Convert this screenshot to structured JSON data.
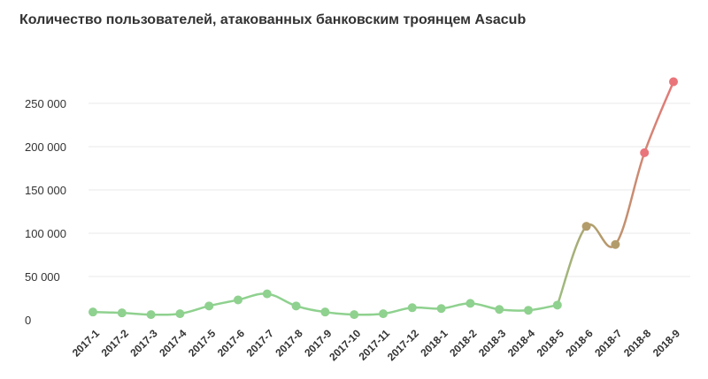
{
  "chart_data": {
    "type": "line",
    "title": "Количество пользователей, атакованных банковским троянцем Asacub",
    "xlabel": "",
    "ylabel": "",
    "categories": [
      "2017-1",
      "2017-2",
      "2017-3",
      "2017-4",
      "2017-5",
      "2017-6",
      "2017-7",
      "2017-8",
      "2017-9",
      "2017-10",
      "2017-11",
      "2017-12",
      "2018-1",
      "2018-2",
      "2018-3",
      "2018-4",
      "2018-5",
      "2018-6",
      "2018-7",
      "2018-8",
      "2018-9"
    ],
    "series": [
      {
        "values": [
          9000,
          8000,
          6000,
          7000,
          16000,
          23000,
          30000,
          16000,
          9000,
          6000,
          7000,
          14000,
          13000,
          19000,
          12000,
          11000,
          17000,
          108000,
          87000,
          193000,
          275000
        ]
      }
    ],
    "yticks": [
      {
        "value": 0,
        "label": "0"
      },
      {
        "value": 50000,
        "label": "50 000"
      },
      {
        "value": 100000,
        "label": "100 000"
      },
      {
        "value": 150000,
        "label": "150 000"
      },
      {
        "value": 200000,
        "label": "200 000"
      },
      {
        "value": 250000,
        "label": "250 000"
      }
    ],
    "ylim": [
      0,
      250000
    ],
    "grid": true,
    "colors": {
      "low": "#8fd18f",
      "mid": "#b39c6b",
      "high": "#e9757a"
    }
  }
}
